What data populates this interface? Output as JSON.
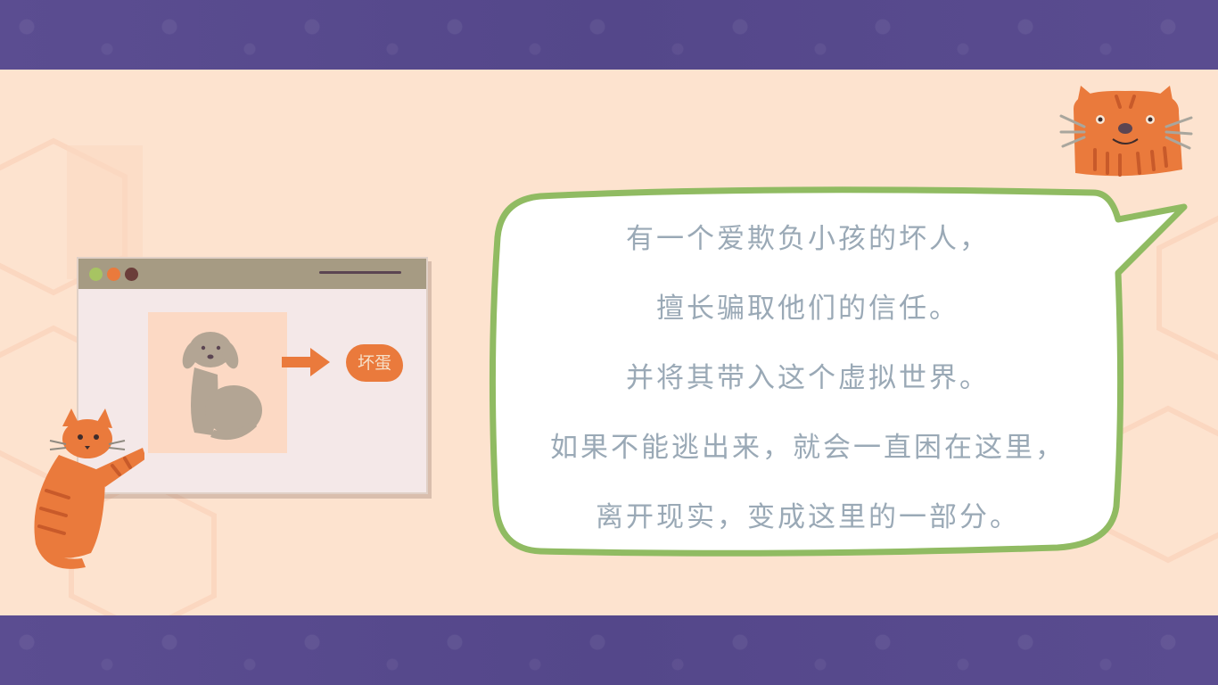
{
  "story": {
    "lines": [
      "有一个爱欺负小孩的坏人，",
      "擅长骗取他们的信任。",
      "并将其带入这个虚拟世界。",
      "如果不能逃出来，就会一直困在这里，",
      "离开现实，变成这里的一部分。"
    ]
  },
  "illustration": {
    "tag_label": "坏蛋",
    "icons": [
      "dog-icon",
      "arrow-right-icon",
      "cat-icon"
    ]
  },
  "colors": {
    "band": "#54478a",
    "panel": "#fde3cf",
    "bubble_border": "#90bb62",
    "text": "#9aa9b6",
    "cat_orange": "#ea7a3c"
  }
}
